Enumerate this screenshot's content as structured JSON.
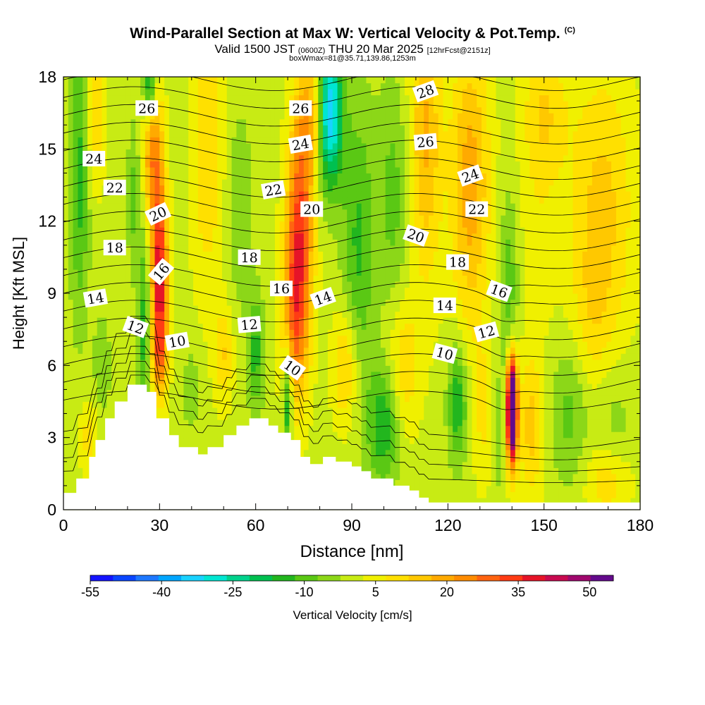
{
  "title": {
    "main": "Wind-Parallel Section at Max W: Vertical Velocity & Pot.Temp.",
    "copyright": "(C)",
    "valid_prefix": "Valid 1500 JST",
    "valid_zulu": "(0600Z)",
    "valid_date": "THU 20 Mar 2025",
    "forecast_info": "[12hrFcst@2151z]",
    "box_info": "boxWmax=81@35.71,139.86,1253m"
  },
  "chart_data": {
    "type": "heatmap",
    "xlabel": "Distance [nm]",
    "ylabel": "Height [Kft MSL]",
    "xlim": [
      0,
      180
    ],
    "ylim": [
      0,
      18
    ],
    "x_ticks": [
      0,
      30,
      60,
      90,
      120,
      150,
      180
    ],
    "y_ticks": [
      0,
      3,
      6,
      9,
      12,
      15,
      18
    ],
    "colorbar": {
      "label": "Vertical Velocity [cm/s]",
      "tick_labels": [
        "-55",
        "-40",
        "-25",
        "-10",
        "5",
        "20",
        "35",
        "50"
      ],
      "tick_values": [
        -55,
        -40,
        -25,
        -10,
        5,
        20,
        35,
        50
      ],
      "levels": [
        -55,
        -50,
        -45,
        -40,
        -35,
        -30,
        -25,
        -20,
        -15,
        -10,
        -5,
        0,
        5,
        10,
        15,
        20,
        25,
        30,
        35,
        40,
        45,
        50,
        55
      ],
      "colors": [
        "#1414ff",
        "#0a46ff",
        "#1e78ff",
        "#00a6ff",
        "#19d2ff",
        "#00e6d2",
        "#00d28c",
        "#00c050",
        "#22b61e",
        "#5ac814",
        "#8cd718",
        "#c8eb14",
        "#f0f000",
        "#ffe000",
        "#ffc800",
        "#ffaa00",
        "#ff8c00",
        "#ff6410",
        "#ff3c14",
        "#e61428",
        "#c80a50",
        "#a0086e",
        "#640a8c"
      ]
    },
    "terrain": [
      [
        0,
        0.7
      ],
      [
        4,
        0.7
      ],
      [
        4,
        1.3
      ],
      [
        8,
        1.3
      ],
      [
        8,
        2.2
      ],
      [
        10,
        2.2
      ],
      [
        10,
        2.9
      ],
      [
        13,
        2.9
      ],
      [
        13,
        3.8
      ],
      [
        16,
        3.8
      ],
      [
        16,
        4.5
      ],
      [
        20,
        4.5
      ],
      [
        20,
        5.2
      ],
      [
        26,
        5.2
      ],
      [
        26,
        4.9
      ],
      [
        29,
        4.9
      ],
      [
        29,
        3.8
      ],
      [
        33,
        3.8
      ],
      [
        33,
        3.1
      ],
      [
        36,
        3.1
      ],
      [
        36,
        2.6
      ],
      [
        42,
        2.6
      ],
      [
        42,
        2.3
      ],
      [
        45,
        2.3
      ],
      [
        45,
        2.6
      ],
      [
        50,
        2.6
      ],
      [
        50,
        3.1
      ],
      [
        54,
        3.1
      ],
      [
        54,
        3.5
      ],
      [
        58,
        3.5
      ],
      [
        58,
        3.8
      ],
      [
        64,
        3.8
      ],
      [
        64,
        3.5
      ],
      [
        67,
        3.5
      ],
      [
        67,
        3.2
      ],
      [
        71,
        3.2
      ],
      [
        71,
        2.9
      ],
      [
        74,
        2.9
      ],
      [
        74,
        2.2
      ],
      [
        77,
        2.2
      ],
      [
        77,
        1.9
      ],
      [
        81,
        1.9
      ],
      [
        81,
        2.2
      ],
      [
        85,
        2.2
      ],
      [
        85,
        2.0
      ],
      [
        90,
        2.0
      ],
      [
        90,
        1.8
      ],
      [
        93,
        1.8
      ],
      [
        93,
        1.6
      ],
      [
        96,
        1.6
      ],
      [
        96,
        1.3
      ],
      [
        103,
        1.3
      ],
      [
        103,
        1.0
      ],
      [
        108,
        1.0
      ],
      [
        108,
        0.8
      ],
      [
        111,
        0.8
      ],
      [
        111,
        0.5
      ],
      [
        114,
        0.5
      ],
      [
        114,
        0.3
      ],
      [
        180,
        0.3
      ]
    ],
    "w_cells": [
      {
        "x": 30,
        "y": 10.0,
        "sx": 2.5,
        "sy": 3.5,
        "w": 40
      },
      {
        "x": 28,
        "y": 15.0,
        "sx": 3,
        "sy": 3,
        "w": 25
      },
      {
        "x": 30,
        "y": 6.5,
        "sx": 2.5,
        "sy": 2,
        "w": 20
      },
      {
        "x": 25,
        "y": 7.5,
        "sx": 2,
        "sy": 4,
        "w": -15
      },
      {
        "x": 22,
        "y": 13.0,
        "sx": 2,
        "sy": 3,
        "w": -10
      },
      {
        "x": 27,
        "y": 17.5,
        "sx": 2,
        "sy": 1.5,
        "w": -25
      },
      {
        "x": 74,
        "y": 12.0,
        "sx": 4,
        "sy": 5,
        "w": 30
      },
      {
        "x": 72,
        "y": 8.0,
        "sx": 4,
        "sy": 4,
        "w": 22
      },
      {
        "x": 78,
        "y": 16.5,
        "sx": 4,
        "sy": 2.5,
        "w": 18
      },
      {
        "x": 83,
        "y": 16.5,
        "sx": 4,
        "sy": 3,
        "w": -40
      },
      {
        "x": 70,
        "y": 4.5,
        "sx": 1.5,
        "sy": 2.5,
        "w": -22
      },
      {
        "x": 92,
        "y": 11.0,
        "sx": 5,
        "sy": 6,
        "w": -14
      },
      {
        "x": 103,
        "y": 13.0,
        "sx": 5,
        "sy": 5,
        "w": -10
      },
      {
        "x": 5,
        "y": 14.0,
        "sx": 3,
        "sy": 6,
        "w": -15
      },
      {
        "x": 10,
        "y": 16.5,
        "sx": 3,
        "sy": 3,
        "w": 12
      },
      {
        "x": 45,
        "y": 15.0,
        "sx": 5,
        "sy": 6,
        "w": 12
      },
      {
        "x": 55,
        "y": 12.5,
        "sx": 4,
        "sy": 4,
        "w": -8
      },
      {
        "x": 60,
        "y": 6.5,
        "sx": 2.5,
        "sy": 2.5,
        "w": -15
      },
      {
        "x": 12,
        "y": 6.0,
        "sx": 3,
        "sy": 2.5,
        "w": -6
      },
      {
        "x": 8,
        "y": 3.0,
        "sx": 3,
        "sy": 1.5,
        "w": 10
      },
      {
        "x": 40,
        "y": 5.0,
        "sx": 3,
        "sy": 2,
        "w": -6
      },
      {
        "x": 50,
        "y": 6.5,
        "sx": 3,
        "sy": 2,
        "w": 12
      },
      {
        "x": 88,
        "y": 6.0,
        "sx": 4,
        "sy": 2.5,
        "w": 15
      },
      {
        "x": 100,
        "y": 3.5,
        "sx": 5,
        "sy": 2.5,
        "w": -18
      },
      {
        "x": 106,
        "y": 6.0,
        "sx": 5,
        "sy": 3,
        "w": 12
      },
      {
        "x": 113,
        "y": 15.5,
        "sx": 5,
        "sy": 6,
        "w": 18
      },
      {
        "x": 127,
        "y": 13.5,
        "sx": 6,
        "sy": 6,
        "w": 20
      },
      {
        "x": 123,
        "y": 4.5,
        "sx": 3,
        "sy": 2.5,
        "w": -18
      },
      {
        "x": 131,
        "y": 4.0,
        "sx": 3,
        "sy": 3,
        "w": 8
      },
      {
        "x": 140,
        "y": 4.2,
        "sx": 1.6,
        "sy": 2.2,
        "w": 80
      },
      {
        "x": 146,
        "y": 3.5,
        "sx": 4,
        "sy": 3,
        "w": 14
      },
      {
        "x": 136,
        "y": 3.0,
        "sx": 2,
        "sy": 2.5,
        "w": -6
      },
      {
        "x": 139,
        "y": 9.0,
        "sx": 3,
        "sy": 4,
        "w": -12
      },
      {
        "x": 150,
        "y": 16.5,
        "sx": 7,
        "sy": 3,
        "w": 12
      },
      {
        "x": 148,
        "y": 11.0,
        "sx": 6,
        "sy": 4,
        "w": 5
      },
      {
        "x": 158,
        "y": 4.0,
        "sx": 6,
        "sy": 3,
        "w": -10
      },
      {
        "x": 172,
        "y": 3.5,
        "sx": 6,
        "sy": 3,
        "w": -6
      },
      {
        "x": 168,
        "y": 12.5,
        "sx": 10,
        "sy": 6,
        "w": 14
      },
      {
        "x": 170,
        "y": 1.2,
        "sx": 7,
        "sy": 1.5,
        "w": 12
      },
      {
        "x": 165,
        "y": 8.0,
        "sx": 6,
        "sy": 3,
        "w": 6
      }
    ],
    "theta_contours": {
      "start": 5,
      "end": 29,
      "step": 1,
      "labels": [
        {
          "v": 26,
          "x": 26,
          "y": 16.7,
          "rot": 0
        },
        {
          "v": 24,
          "x": 9.5,
          "y": 14.6,
          "rot": 0
        },
        {
          "v": 22,
          "x": 16,
          "y": 13.4,
          "rot": 0
        },
        {
          "v": 20,
          "x": 29.5,
          "y": 12.3,
          "rot": -25
        },
        {
          "v": 18,
          "x": 16,
          "y": 10.9,
          "rot": 0
        },
        {
          "v": 16,
          "x": 30.5,
          "y": 9.9,
          "rot": -50
        },
        {
          "v": 14,
          "x": 10,
          "y": 8.8,
          "rot": -10
        },
        {
          "v": 12,
          "x": 22.5,
          "y": 7.6,
          "rot": 20
        },
        {
          "v": 10,
          "x": 35.5,
          "y": 7.0,
          "rot": -10
        },
        {
          "v": 26,
          "x": 74,
          "y": 16.7,
          "rot": 0
        },
        {
          "v": 24,
          "x": 74,
          "y": 15.2,
          "rot": -10
        },
        {
          "v": 22,
          "x": 65.5,
          "y": 13.3,
          "rot": -10
        },
        {
          "v": 20,
          "x": 77.5,
          "y": 12.5,
          "rot": 0
        },
        {
          "v": 18,
          "x": 58,
          "y": 10.5,
          "rot": 0
        },
        {
          "v": 16,
          "x": 68,
          "y": 9.2,
          "rot": 0
        },
        {
          "v": 14,
          "x": 81,
          "y": 8.8,
          "rot": -20
        },
        {
          "v": 12,
          "x": 58,
          "y": 7.7,
          "rot": -5
        },
        {
          "v": 10,
          "x": 71.5,
          "y": 5.9,
          "rot": 35
        },
        {
          "v": 28,
          "x": 113,
          "y": 17.4,
          "rot": -20
        },
        {
          "v": 26,
          "x": 113,
          "y": 15.3,
          "rot": -5
        },
        {
          "v": 24,
          "x": 127,
          "y": 13.9,
          "rot": -20
        },
        {
          "v": 22,
          "x": 129,
          "y": 12.5,
          "rot": 0
        },
        {
          "v": 20,
          "x": 110,
          "y": 11.4,
          "rot": 20
        },
        {
          "v": 18,
          "x": 123,
          "y": 10.3,
          "rot": 0
        },
        {
          "v": 16,
          "x": 136,
          "y": 9.1,
          "rot": 20
        },
        {
          "v": 14,
          "x": 119,
          "y": 8.5,
          "rot": 0
        },
        {
          "v": 12,
          "x": 132,
          "y": 7.4,
          "rot": -15
        },
        {
          "v": 10,
          "x": 119,
          "y": 6.5,
          "rot": 15
        }
      ]
    }
  }
}
